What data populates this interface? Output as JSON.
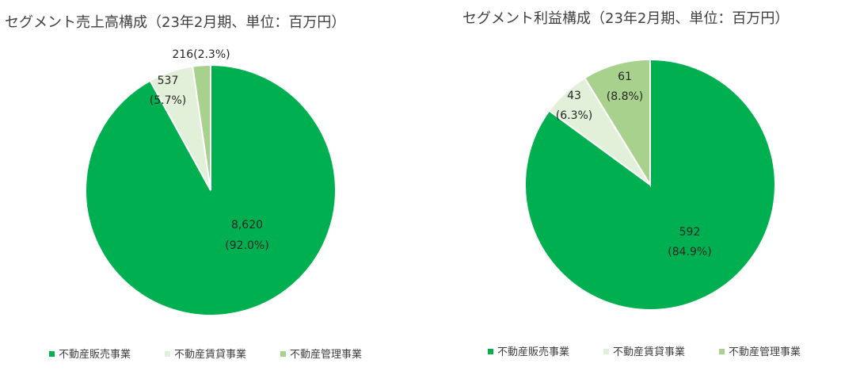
{
  "chart_data": [
    {
      "type": "pie",
      "title": "セグメント売上高構成（23年2月期、単位：百万円）",
      "slices": [
        {
          "name": "不動産販売事業",
          "value": 8620,
          "value_label": "8,620",
          "pct_label": "(92.0%)",
          "color": "#00b050"
        },
        {
          "name": "不動産賃貸事業",
          "value": 537,
          "value_label": "537",
          "pct_label": "(5.7%)",
          "color": "#e2f0d9"
        },
        {
          "name": "不動産管理事業",
          "value": 216,
          "value_label": "216",
          "pct_label": "(2.3%)",
          "color": "#a9d18e"
        }
      ],
      "legend": [
        "不動産販売事業",
        "不動産賃貸事業",
        "不動産管理事業"
      ],
      "legend_position": "bottom"
    },
    {
      "type": "pie",
      "title": "セグメント利益構成（23年2月期、単位：百万円）",
      "slices": [
        {
          "name": "不動産販売事業",
          "value": 592,
          "value_label": "592",
          "pct_label": "(84.9%)",
          "color": "#00b050"
        },
        {
          "name": "不動産賃貸事業",
          "value": 43,
          "value_label": "43",
          "pct_label": "(6.3%)",
          "color": "#e2f0d9"
        },
        {
          "name": "不動産管理事業",
          "value": 61,
          "value_label": "61",
          "pct_label": "(8.8%)",
          "color": "#a9d18e"
        }
      ],
      "legend": [
        "不動産販売事業",
        "不動産賃貸事業",
        "不動産管理事業"
      ],
      "legend_position": "bottom"
    }
  ]
}
